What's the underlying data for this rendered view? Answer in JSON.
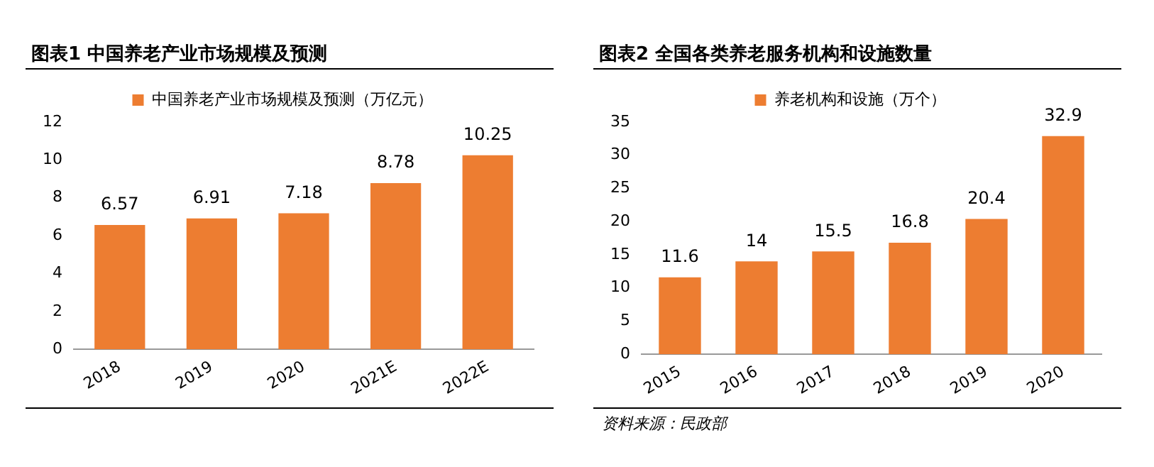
{
  "chart_data": [
    {
      "type": "bar",
      "title": "图表1 中国养老产业市场规模及预测",
      "categories": [
        "2018",
        "2019",
        "2020",
        "2021E",
        "2022E"
      ],
      "series": [
        {
          "name": "中国养老产业市场规模及预测（万亿元）",
          "color": "#ed7d31",
          "values": [
            6.57,
            6.91,
            7.18,
            8.78,
            10.25
          ]
        }
      ],
      "ylim": [
        0,
        12
      ],
      "yticks": [
        0,
        2,
        4,
        6,
        8,
        10,
        12
      ],
      "grid": false,
      "legend": "top",
      "data_labels": true
    },
    {
      "type": "bar",
      "title": "图表2 全国各类养老服务机构和设施数量",
      "categories": [
        "2015",
        "2016",
        "2017",
        "2018",
        "2019",
        "2020"
      ],
      "series": [
        {
          "name": "养老机构和设施（万个）",
          "color": "#ed7d31",
          "values": [
            11.6,
            14,
            15.5,
            16.8,
            20.4,
            32.9
          ]
        }
      ],
      "ylim": [
        0,
        35
      ],
      "yticks": [
        0,
        5,
        10,
        15,
        20,
        25,
        30,
        35
      ],
      "grid": false,
      "legend": "top",
      "data_labels": true,
      "annotations": [
        "资料来源：民政部"
      ]
    }
  ]
}
